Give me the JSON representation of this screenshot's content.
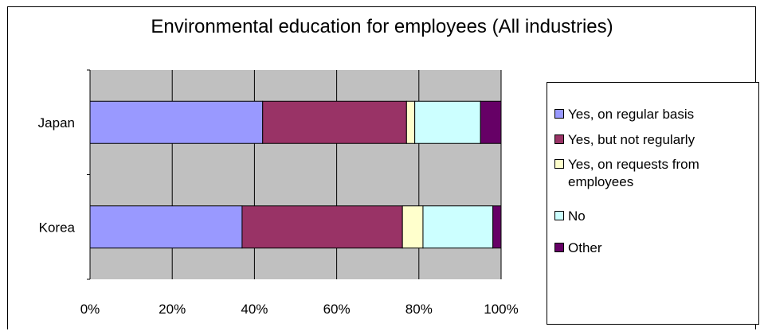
{
  "chart_data": {
    "type": "bar",
    "orientation": "horizontal",
    "stacked": true,
    "title": "Environmental education for employees (All  industries)",
    "categories": [
      "Japan",
      "Korea"
    ],
    "series": [
      {
        "name": "Yes, on regular basis",
        "color": "#9999ff",
        "values": [
          42,
          37
        ]
      },
      {
        "name": "Yes, but not regularly",
        "color": "#993366",
        "values": [
          35,
          39
        ]
      },
      {
        "name": "Yes, on requests from employees",
        "color": "#ffffcc",
        "values": [
          2,
          5
        ]
      },
      {
        "name": "No",
        "color": "#ccffff",
        "values": [
          16,
          17
        ]
      },
      {
        "name": "Other",
        "color": "#660066",
        "values": [
          5,
          2
        ]
      }
    ],
    "xlim": [
      0,
      100
    ],
    "x_ticks": [
      "0%",
      "20%",
      "40%",
      "60%",
      "80%",
      "100%"
    ],
    "grid": true,
    "plot_background": "#c0c0c0",
    "legend_position": "right"
  }
}
